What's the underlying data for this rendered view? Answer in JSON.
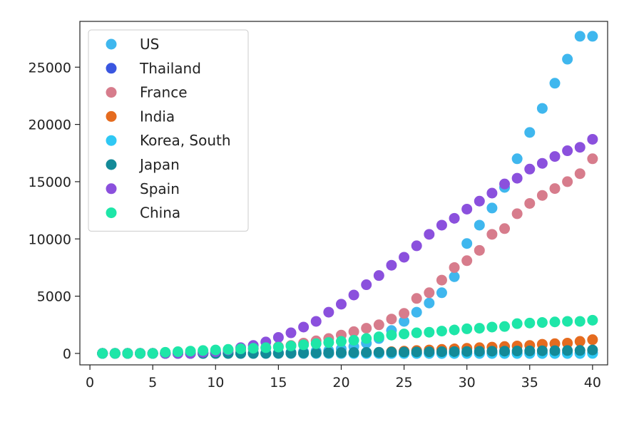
{
  "chart_data": {
    "type": "scatter",
    "title": "",
    "xlabel": "",
    "ylabel": "",
    "xlim": [
      -0.8,
      41.2
    ],
    "ylim": [
      -1000,
      29000
    ],
    "xticks": [
      0,
      5,
      10,
      15,
      20,
      25,
      30,
      35,
      40
    ],
    "xtick_labels": [
      "0",
      "5",
      "10",
      "15",
      "20",
      "25",
      "30",
      "35",
      "40"
    ],
    "yticks": [
      0,
      5000,
      10000,
      15000,
      20000,
      25000
    ],
    "ytick_labels": [
      "0",
      "5000",
      "10000",
      "15000",
      "20000",
      "25000"
    ],
    "grid": false,
    "legend_position": "upper-left",
    "x": [
      1,
      2,
      3,
      4,
      5,
      6,
      7,
      8,
      9,
      10,
      11,
      12,
      13,
      14,
      15,
      16,
      17,
      18,
      19,
      20,
      21,
      22,
      23,
      24,
      25,
      26,
      27,
      28,
      29,
      30,
      31,
      32,
      33,
      34,
      35,
      36,
      37,
      38,
      39,
      40
    ],
    "series": [
      {
        "name": "US",
        "color": "#3fb7ee",
        "values": [
          0,
          0,
          0,
          0,
          0,
          0,
          0,
          0,
          0,
          20,
          30,
          40,
          50,
          60,
          70,
          100,
          150,
          200,
          250,
          400,
          600,
          900,
          1300,
          2000,
          2800,
          3600,
          4400,
          5300,
          6700,
          9600,
          11200,
          12700,
          14500,
          17000,
          19300,
          21400,
          23600,
          25700,
          27700,
          27700
        ]
      },
      {
        "name": "Thailand",
        "color": "#3a56e0",
        "values": [
          0,
          0,
          0,
          0,
          0,
          0,
          0,
          0,
          0,
          0,
          0,
          0,
          0,
          0,
          0,
          0,
          0,
          0,
          0,
          0,
          0,
          0,
          0,
          0,
          0,
          0,
          0,
          0,
          0,
          0,
          0,
          0,
          0,
          0,
          0,
          0,
          0,
          0,
          0,
          30
        ]
      },
      {
        "name": "France",
        "color": "#d77c8c",
        "values": [
          0,
          0,
          0,
          0,
          0,
          0,
          0,
          0,
          50,
          100,
          200,
          300,
          400,
          500,
          600,
          700,
          900,
          1100,
          1300,
          1600,
          1900,
          2200,
          2500,
          3000,
          3500,
          4800,
          5300,
          6400,
          7500,
          8100,
          9000,
          10400,
          10900,
          12200,
          13100,
          13800,
          14400,
          15000,
          15700,
          17000
        ]
      },
      {
        "name": "India",
        "color": "#e56b1f",
        "values": [
          0,
          0,
          0,
          0,
          0,
          0,
          0,
          0,
          0,
          0,
          0,
          0,
          0,
          0,
          0,
          0,
          0,
          0,
          0,
          0,
          30,
          60,
          100,
          150,
          200,
          250,
          300,
          350,
          400,
          450,
          500,
          550,
          600,
          650,
          700,
          800,
          850,
          900,
          1050,
          1200
        ]
      },
      {
        "name": "Korea, South",
        "color": "#2fc8f4",
        "values": [
          0,
          0,
          0,
          0,
          0,
          0,
          0,
          0,
          0,
          0,
          0,
          0,
          0,
          0,
          0,
          0,
          0,
          0,
          0,
          0,
          0,
          0,
          0,
          0,
          0,
          0,
          0,
          0,
          0,
          0,
          0,
          0,
          0,
          0,
          0,
          0,
          0,
          0,
          0,
          0
        ]
      },
      {
        "name": "Japan",
        "color": "#138a98",
        "values": [
          0,
          0,
          0,
          0,
          0,
          0,
          0,
          0,
          0,
          0,
          0,
          0,
          0,
          10,
          20,
          30,
          40,
          50,
          60,
          70,
          80,
          90,
          100,
          110,
          120,
          130,
          140,
          150,
          160,
          170,
          180,
          190,
          200,
          210,
          220,
          230,
          240,
          250,
          260,
          300
        ]
      },
      {
        "name": "Spain",
        "color": "#8b50dd",
        "values": [
          0,
          0,
          0,
          0,
          0,
          0,
          0,
          0,
          100,
          150,
          300,
          500,
          700,
          1000,
          1400,
          1800,
          2300,
          2800,
          3600,
          4300,
          5100,
          6000,
          6800,
          7700,
          8400,
          9400,
          10400,
          11200,
          11800,
          12600,
          13300,
          14000,
          14800,
          15300,
          16100,
          16600,
          17200,
          17700,
          18000,
          18700
        ]
      },
      {
        "name": "China",
        "color": "#1ee6a8",
        "values": [
          0,
          0,
          0,
          0,
          0,
          100,
          150,
          200,
          250,
          300,
          350,
          400,
          450,
          500,
          550,
          650,
          750,
          850,
          950,
          1050,
          1150,
          1300,
          1450,
          1600,
          1700,
          1800,
          1850,
          1950,
          2050,
          2150,
          2200,
          2300,
          2350,
          2600,
          2650,
          2700,
          2750,
          2800,
          2800,
          2900
        ]
      }
    ]
  }
}
